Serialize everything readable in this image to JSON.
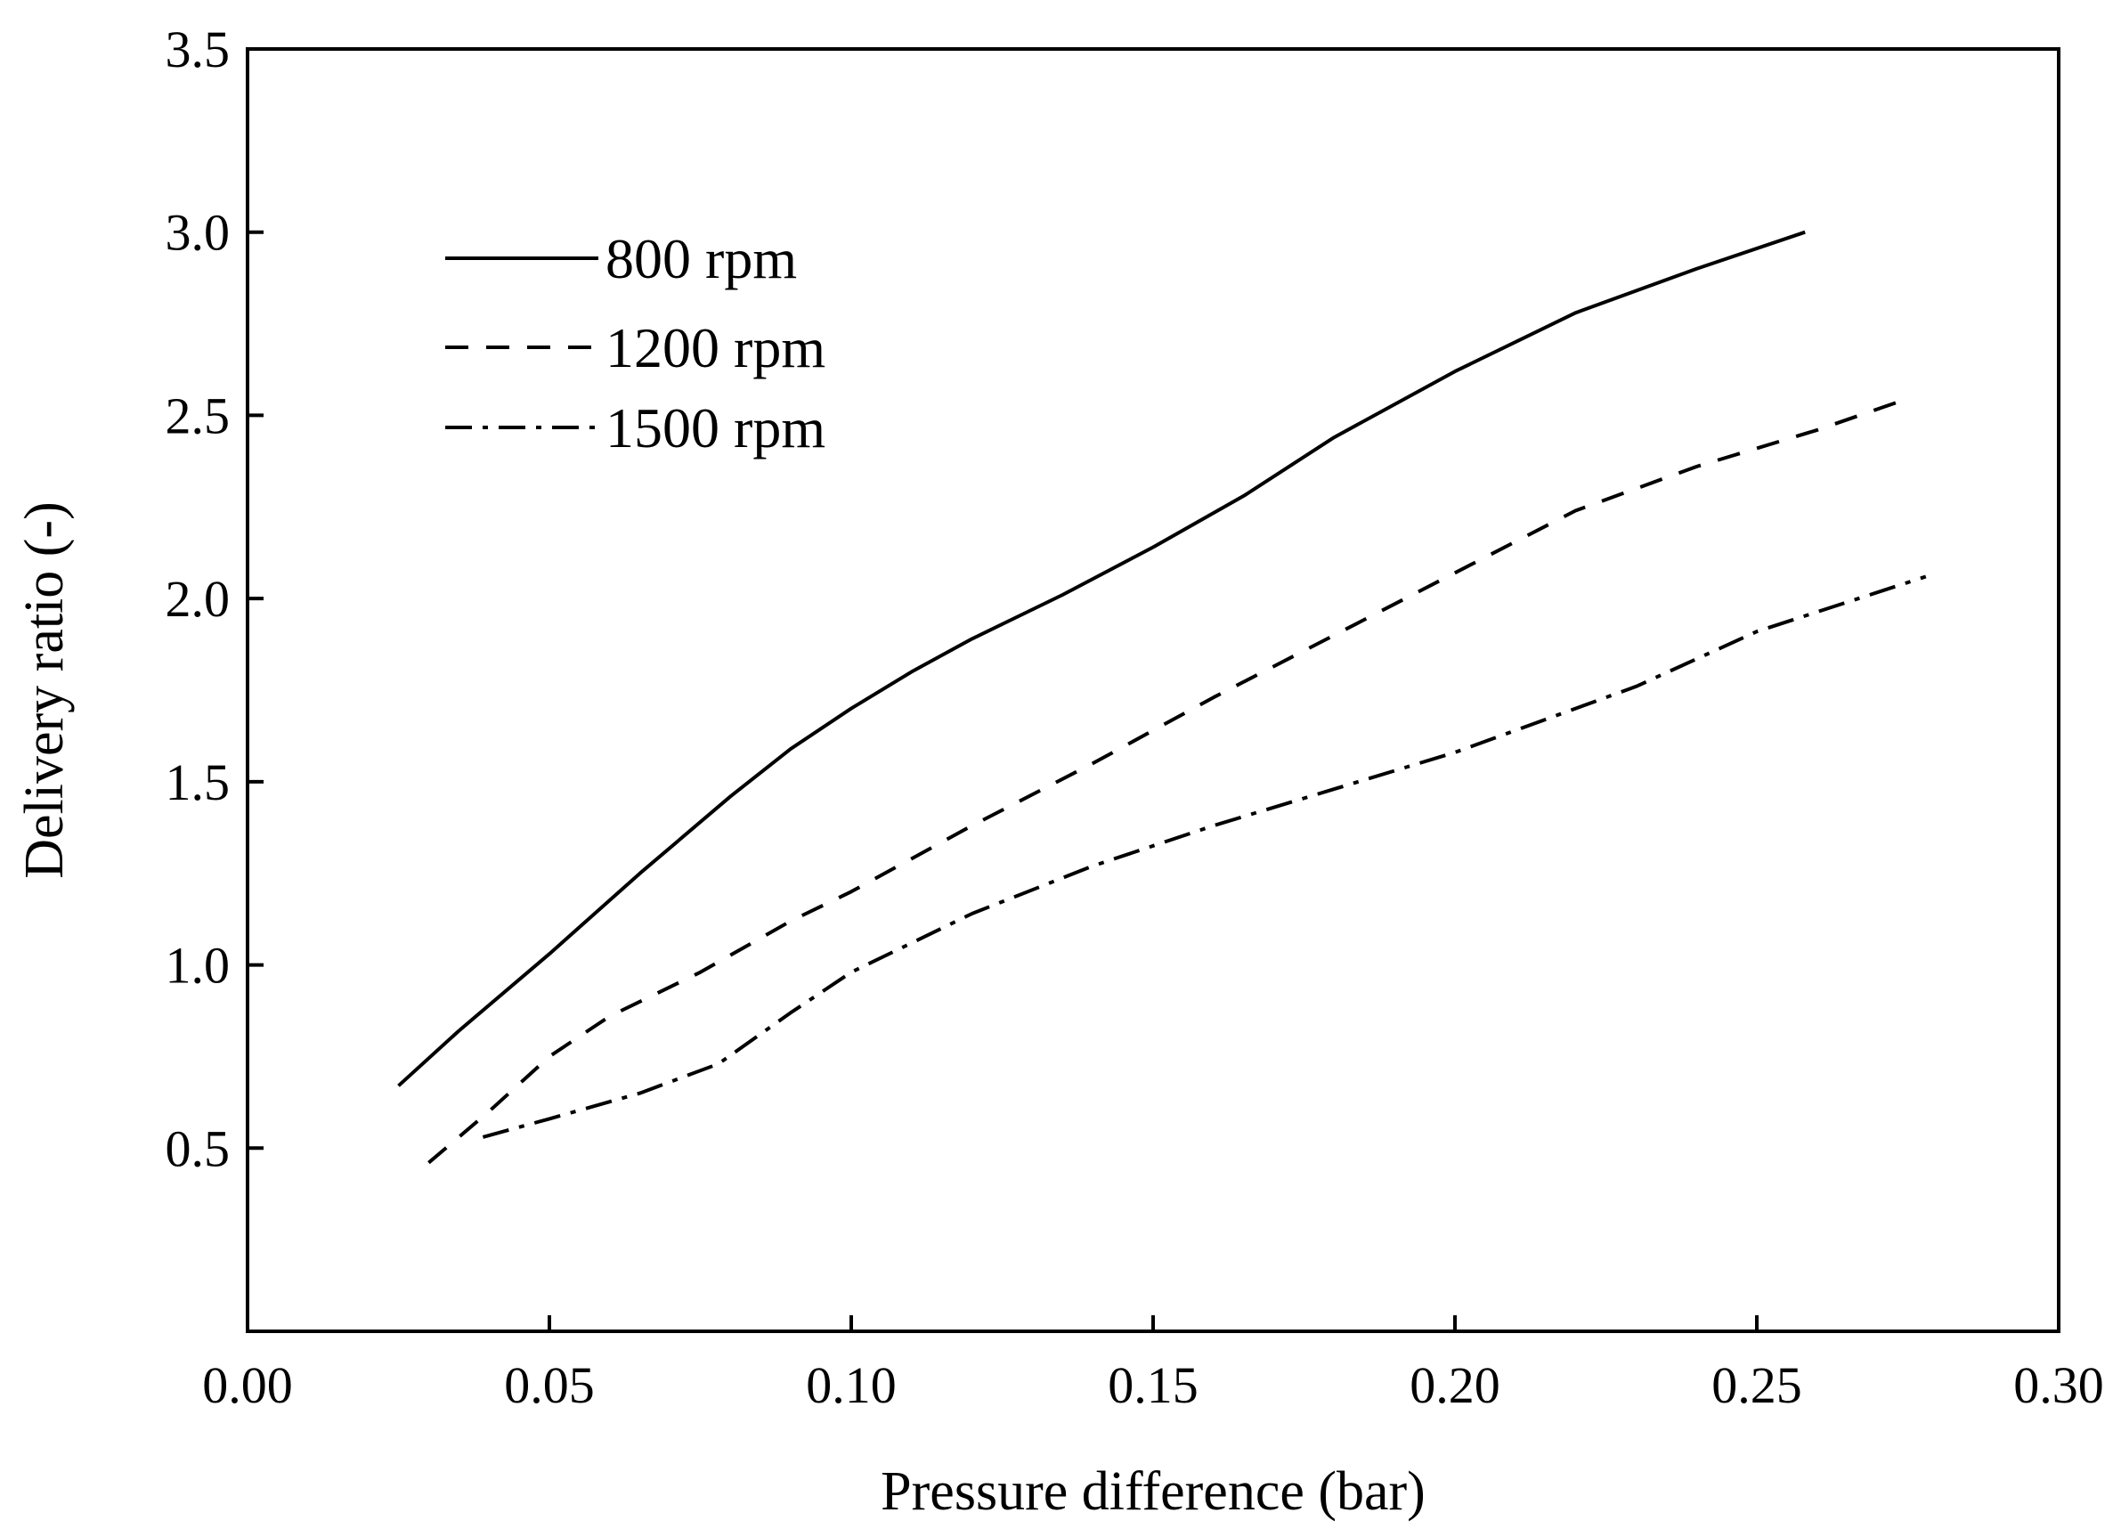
{
  "chart_data": {
    "type": "line",
    "title": "",
    "xlabel": "Pressure difference (bar)",
    "ylabel": "Delivery ratio (-)",
    "xlim": [
      0.0,
      0.3
    ],
    "ylim": [
      0.0,
      3.5
    ],
    "x_ticks": [
      0.0,
      0.05,
      0.1,
      0.15,
      0.2,
      0.25,
      0.3
    ],
    "x_tick_labels": [
      "0.00",
      "0.05",
      "0.10",
      "0.15",
      "0.20",
      "0.25",
      "0.30"
    ],
    "y_ticks": [
      0.5,
      1.0,
      1.5,
      2.0,
      2.5,
      3.0,
      3.5
    ],
    "y_tick_labels": [
      "0.5",
      "1.0",
      "1.5",
      "2.0",
      "2.5",
      "3.0",
      "3.5"
    ],
    "grid": false,
    "legend_position": "top-left",
    "series": [
      {
        "name": "800 rpm",
        "style": "solid",
        "color": "#000000",
        "x": [
          0.025,
          0.035,
          0.05,
          0.065,
          0.08,
          0.09,
          0.1,
          0.11,
          0.12,
          0.135,
          0.15,
          0.165,
          0.18,
          0.2,
          0.22,
          0.24,
          0.258
        ],
        "y": [
          0.67,
          0.82,
          1.03,
          1.25,
          1.46,
          1.59,
          1.7,
          1.8,
          1.89,
          2.01,
          2.14,
          2.28,
          2.44,
          2.62,
          2.78,
          2.9,
          3.0
        ]
      },
      {
        "name": "1200 rpm",
        "style": "dashed",
        "color": "#000000",
        "x": [
          0.03,
          0.04,
          0.05,
          0.06,
          0.075,
          0.09,
          0.1,
          0.12,
          0.14,
          0.16,
          0.18,
          0.2,
          0.22,
          0.24,
          0.26,
          0.274
        ],
        "y": [
          0.46,
          0.6,
          0.75,
          0.86,
          0.98,
          1.12,
          1.2,
          1.38,
          1.55,
          1.73,
          1.9,
          2.07,
          2.24,
          2.36,
          2.46,
          2.54
        ]
      },
      {
        "name": "1500 rpm",
        "style": "dashdot",
        "color": "#000000",
        "x": [
          0.039,
          0.05,
          0.065,
          0.078,
          0.09,
          0.1,
          0.12,
          0.14,
          0.16,
          0.18,
          0.2,
          0.23,
          0.25,
          0.278
        ],
        "y": [
          0.53,
          0.58,
          0.65,
          0.73,
          0.87,
          0.98,
          1.14,
          1.27,
          1.38,
          1.48,
          1.58,
          1.76,
          1.91,
          2.06
        ]
      }
    ]
  }
}
